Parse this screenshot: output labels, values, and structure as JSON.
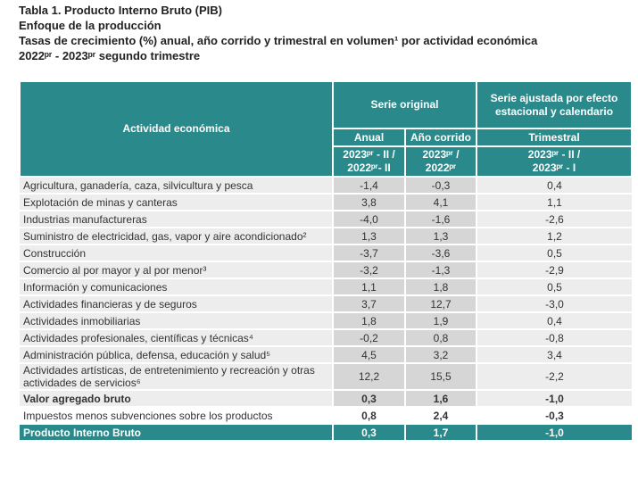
{
  "header": {
    "title": "Tabla 1. Producto Interno Bruto (PIB)",
    "subtitle": "Enfoque de la producción",
    "description": "Tasas de crecimiento (%) anual, año corrido y trimestral en volumen¹ por actividad económica",
    "period": "2022ᵖʳ - 2023ᵖʳ segundo trimestre"
  },
  "table": {
    "col_header": "Actividad económica",
    "group_original": "Serie original",
    "group_adjusted": "Serie ajustada por efecto estacional y calendario",
    "sub_headers": [
      "Anual",
      "Año corrido",
      "Trimestral"
    ],
    "periods": [
      "2023ᵖʳ - II /\n2022ᵖʳ- II",
      "2023ᵖʳ /\n2022ᵖʳ",
      "2023ᵖʳ - II /\n2023ᵖʳ - I"
    ],
    "rows": [
      [
        "Agricultura, ganadería, caza, silvicultura y pesca",
        "-1,4",
        "-0,3",
        "0,4"
      ],
      [
        "Explotación de minas y canteras",
        "3,8",
        "4,1",
        "1,1"
      ],
      [
        "Industrias manufactureras",
        "-4,0",
        "-1,6",
        "-2,6"
      ],
      [
        "Suministro de electricidad, gas, vapor y aire acondicionado²",
        "1,3",
        "1,3",
        "1,2"
      ],
      [
        "Construcción",
        "-3,7",
        "-3,6",
        "0,5"
      ],
      [
        "Comercio al por mayor y al por menor³",
        "-3,2",
        "-1,3",
        "-2,9"
      ],
      [
        "Información y comunicaciones",
        "1,1",
        "1,8",
        "0,5"
      ],
      [
        "Actividades financieras y de seguros",
        "3,7",
        "12,7",
        "-3,0"
      ],
      [
        "Actividades inmobiliarias",
        "1,8",
        "1,9",
        "0,4"
      ],
      [
        "Actividades profesionales, científicas y técnicas⁴",
        "-0,2",
        "0,8",
        "-0,8"
      ],
      [
        "Administración pública, defensa, educación y salud⁵",
        "4,5",
        "3,2",
        "3,4"
      ],
      [
        "Actividades artísticas, de entretenimiento y recreación y otras actividades de servicios⁶",
        "12,2",
        "15,5",
        "-2,2"
      ],
      [
        "Valor agregado bruto",
        "0,3",
        "1,6",
        "-1,0"
      ],
      [
        "Impuestos menos subvenciones sobre los productos",
        "0,8",
        "2,4",
        "-0,3"
      ],
      [
        "Producto Interno Bruto",
        "0,3",
        "1,7",
        "-1,0"
      ]
    ]
  }
}
